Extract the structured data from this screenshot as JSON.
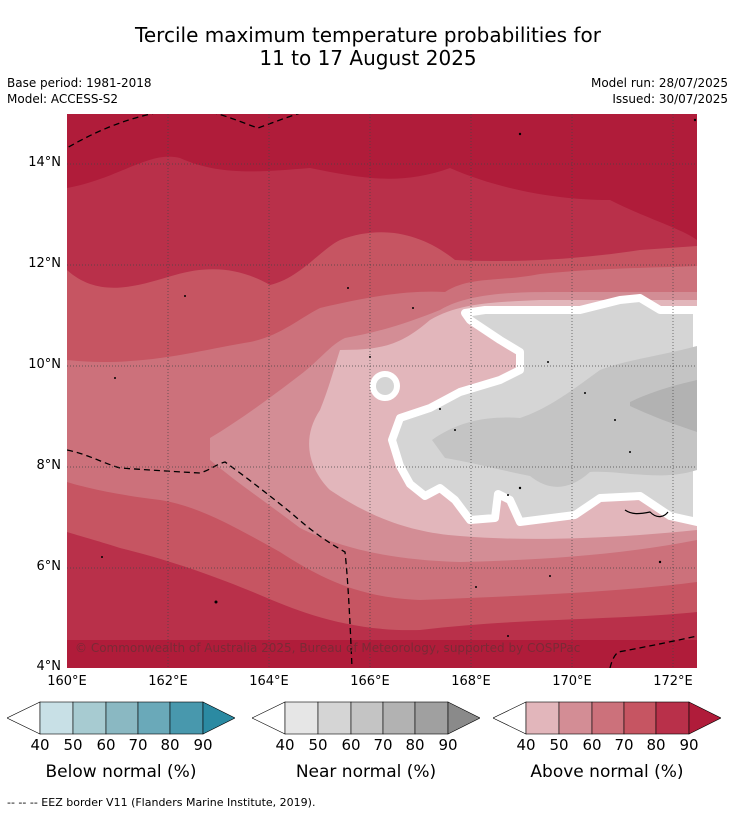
{
  "title_line1": "Tercile maximum temperature probabilities for",
  "title_line2": "11 to 17 August 2025",
  "base_period": "Base period: 1981-2018",
  "model": "Model: ACCESS-S2",
  "model_run": "Model run: 28/07/2025",
  "issued": "Issued: 30/07/2025",
  "map": {
    "lat_labels": [
      "14°N",
      "12°N",
      "10°N",
      "8°N",
      "6°N",
      "4°N"
    ],
    "lon_labels": [
      "160°E",
      "162°E",
      "164°E",
      "166°E",
      "168°E",
      "170°E",
      "172°E"
    ],
    "copyright": "© Commonwealth of Australia 2025, Bureau of Meteorology, supported by COSPPac"
  },
  "colorbars": [
    {
      "title": "Below normal (%)",
      "ticks": [
        "40",
        "50",
        "60",
        "70",
        "80",
        "90"
      ],
      "colors": [
        "#c8e0e6",
        "#a7cbd1",
        "#8ab8c2",
        "#6aa9b9",
        "#4898ad",
        "#2b8aa2"
      ]
    },
    {
      "title": "Near normal (%)",
      "ticks": [
        "40",
        "50",
        "60",
        "70",
        "80",
        "90"
      ],
      "colors": [
        "#e6e6e6",
        "#d5d5d5",
        "#c4c4c4",
        "#b2b2b2",
        "#a0a0a0",
        "#8a8a8a"
      ]
    },
    {
      "title": "Above normal (%)",
      "ticks": [
        "40",
        "50",
        "60",
        "70",
        "80",
        "90"
      ],
      "colors": [
        "#e2b6bb",
        "#d38d95",
        "#cc717b",
        "#c65562",
        "#b9304a",
        "#b01c3a"
      ]
    }
  ],
  "footer": "--  --  -- EEZ border V11 (Flanders Marine Institute, 2019)."
}
